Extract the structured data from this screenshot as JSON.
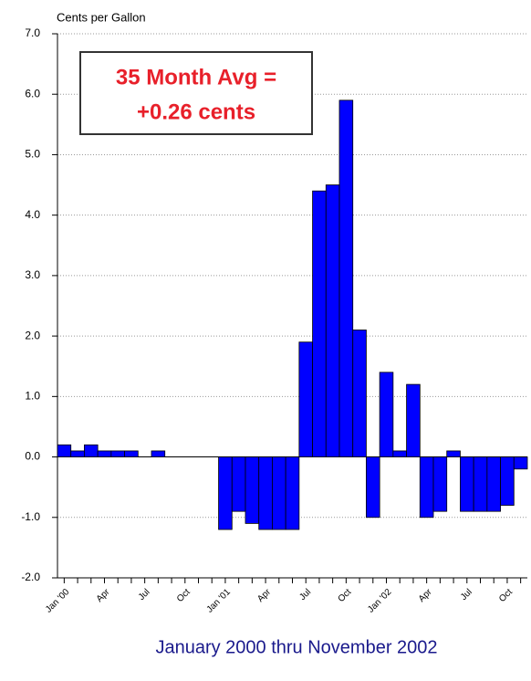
{
  "chart_data": {
    "type": "bar",
    "title": "Cents per Gallon",
    "xlabel": "January 2000 thru November 2002",
    "annotation": [
      "35 Month Avg =",
      "+0.26 cents"
    ],
    "categories": [
      "Jan '00",
      null,
      null,
      "Apr",
      null,
      null,
      "Jul",
      null,
      null,
      "Oct",
      null,
      null,
      "Jan '01",
      null,
      null,
      "Apr",
      null,
      null,
      "Jul",
      null,
      null,
      "Oct",
      null,
      null,
      "Jan '02",
      null,
      null,
      "Apr",
      null,
      null,
      "Jul",
      null,
      null,
      "Oct",
      null
    ],
    "values": [
      0.2,
      0.1,
      0.2,
      0.1,
      0.1,
      0.1,
      0,
      0.1,
      0,
      0,
      0,
      0,
      -1.2,
      -0.9,
      -1.1,
      -1.2,
      -1.2,
      -1.2,
      1.9,
      4.4,
      4.5,
      5.9,
      2.1,
      -1.0,
      1.4,
      0.1,
      1.2,
      -1.0,
      -0.9,
      0.1,
      -0.9,
      -0.9,
      -0.9,
      -0.8,
      -0.2
    ],
    "color": "#0000ff",
    "ylim": [
      -2,
      7
    ],
    "yticks": [
      {
        "value": -2,
        "label": "-2.0"
      },
      {
        "value": -1,
        "label": "-1.0"
      },
      {
        "value": 0,
        "label": "0.0"
      },
      {
        "value": 1,
        "label": "1.0"
      },
      {
        "value": 2,
        "label": "2.0"
      },
      {
        "value": 3,
        "label": "3.0"
      },
      {
        "value": 4,
        "label": "4.0"
      },
      {
        "value": 5,
        "label": "5.0"
      },
      {
        "value": 6,
        "label": "6.0"
      },
      {
        "value": 7,
        "label": "7.0"
      }
    ],
    "grid": true
  }
}
